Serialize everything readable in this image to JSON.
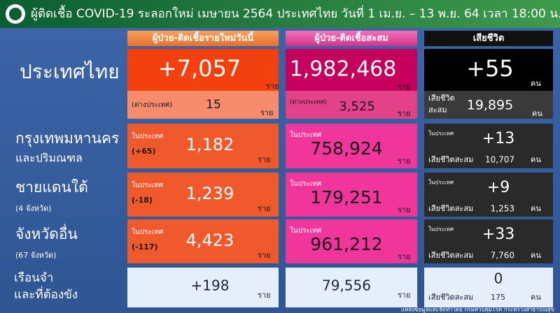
{
  "header": {
    "title": "ผู้ติดเชื้อ COVID-19 ระลอกใหม่ เมษายน 2564 ประเทศไทย วันที่ 1 เม.ย. – 13 พ.ย. 64 เวลา 18:00 น."
  },
  "columns": [
    "ผู้ป่วย-ติดเชื้อรายใหม่วันนี้",
    "ผู้ป่วย-ติดเชื้อสะสม",
    "เสียชีวิต"
  ],
  "rows": [
    {
      "label": [
        "ประเทศไทย"
      ],
      "new": {
        "value": "+7,057",
        "unit": "ราย",
        "abroad": {
          "label": "(ต่างประเทศ)",
          "value": "15",
          "unit": "ราย"
        }
      },
      "total": {
        "value": "1,982,468",
        "unit": "ราย",
        "abroad": {
          "label": "(ต่างประเทศ)",
          "value": "3,525",
          "unit": "ราย"
        }
      },
      "deaths": {
        "value": "+55",
        "unit": "คน",
        "cumulative": {
          "label": [
            "เสียชีวิต",
            "สะสม"
          ],
          "value": "19,895",
          "unit": "คน"
        }
      }
    },
    {
      "label": [
        "กรุงเทพมหานคร",
        "และปริมณฑล"
      ],
      "new": {
        "note": "ในประเทศ",
        "change": "(+65)",
        "value": "1,182",
        "unit": "ราย"
      },
      "total": {
        "note": "ในประเทศ",
        "value": "758,924",
        "unit": "ราย"
      },
      "deaths": {
        "note": "ในประเทศ",
        "value": "+13",
        "cumulative": {
          "label": "เสียชีวิตสะสม",
          "value": "10,707",
          "unit": "คน"
        }
      }
    },
    {
      "label": [
        "ชายแดนใต้",
        "(4 จังหวัด)"
      ],
      "new": {
        "note": "ในประเทศ",
        "change": "(-18)",
        "value": "1,239",
        "unit": "ราย"
      },
      "total": {
        "note": "ในประเทศ",
        "value": "179,251",
        "unit": "ราย"
      },
      "deaths": {
        "note": "ในประเทศ",
        "value": "+9",
        "cumulative": {
          "label": "เสียชีวิตสะสม",
          "value": "1,253",
          "unit": "คน"
        }
      }
    },
    {
      "label": [
        "จังหวัดอื่น",
        "(67 จังหวัด)"
      ],
      "new": {
        "note": "ในประเทศ",
        "change": "(-117)",
        "value": "4,423",
        "unit": "ราย"
      },
      "total": {
        "note": "ในประเทศ",
        "value": "961,212",
        "unit": "ราย"
      },
      "deaths": {
        "note": "ในประเทศ",
        "value": "+33",
        "cumulative": {
          "label": "เสียชีวิตสะสม",
          "value": "7,760",
          "unit": "คน"
        }
      }
    },
    {
      "label": [
        "เรือนจำ",
        "และที่ต้องขัง"
      ],
      "new": {
        "value": "+198",
        "unit": "ราย"
      },
      "total": {
        "value": "79,556",
        "unit": "ราย"
      },
      "deaths": {
        "value": "0",
        "cumulative": {
          "label": "เสียชีวิตสะสม",
          "value": "175",
          "unit": "คน"
        }
      }
    }
  ],
  "footer": "แหล่งข้อมูลและจัดทำโดย กรมควบคุมโรค กระทรวงสาธารณสุข"
}
